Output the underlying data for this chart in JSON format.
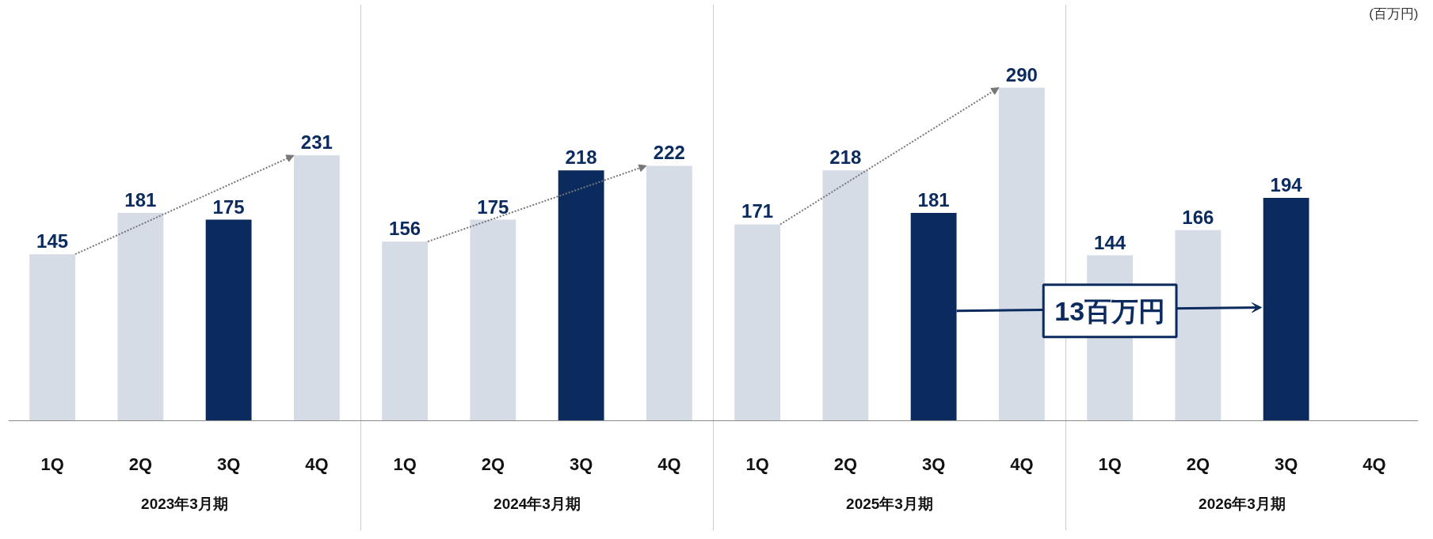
{
  "chart_data": {
    "type": "bar",
    "categories": [
      "1Q",
      "2Q",
      "3Q",
      "4Q",
      "1Q",
      "2Q",
      "3Q",
      "4Q",
      "1Q",
      "2Q",
      "3Q",
      "4Q",
      "1Q",
      "2Q",
      "3Q",
      "4Q"
    ],
    "values": [
      145,
      181,
      175,
      231,
      156,
      175,
      218,
      222,
      171,
      218,
      181,
      290,
      144,
      166,
      194,
      null
    ],
    "colors": [
      "#d5dce6",
      "#d5dce6",
      "#0b2a5e",
      "#d5dce6",
      "#d5dce6",
      "#d5dce6",
      "#0b2a5e",
      "#d5dce6",
      "#d5dce6",
      "#d5dce6",
      "#0b2a5e",
      "#d5dce6",
      "#d5dce6",
      "#d5dce6",
      "#0b2a5e",
      "#d5dce6"
    ],
    "data_labels": true,
    "annotations": [
      "(百万円)",
      "13百万円",
      "2023年3月期",
      "2024年3月期",
      "2025年3月期",
      "2026年3月期"
    ]
  }
}
